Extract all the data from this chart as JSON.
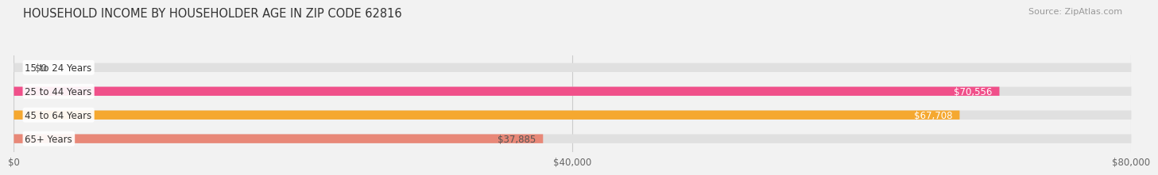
{
  "title": "HOUSEHOLD INCOME BY HOUSEHOLDER AGE IN ZIP CODE 62816",
  "source": "Source: ZipAtlas.com",
  "categories": [
    "15 to 24 Years",
    "25 to 44 Years",
    "45 to 64 Years",
    "65+ Years"
  ],
  "values": [
    0,
    70556,
    67708,
    37885
  ],
  "bar_colors": [
    "#a8a8d8",
    "#f0508a",
    "#f5a830",
    "#e88878"
  ],
  "label_colors": [
    "#555555",
    "#ffffff",
    "#ffffff",
    "#555555"
  ],
  "background_color": "#f2f2f2",
  "bar_bg_color": "#e0e0e0",
  "xlim": [
    0,
    80000
  ],
  "xticks": [
    0,
    40000,
    80000
  ],
  "xtick_labels": [
    "$0",
    "$40,000",
    "$80,000"
  ],
  "value_labels": [
    "$0",
    "$70,556",
    "$67,708",
    "$37,885"
  ],
  "bar_height": 0.38,
  "title_fontsize": 10.5,
  "source_fontsize": 8,
  "label_fontsize": 8.5,
  "tick_fontsize": 8.5
}
